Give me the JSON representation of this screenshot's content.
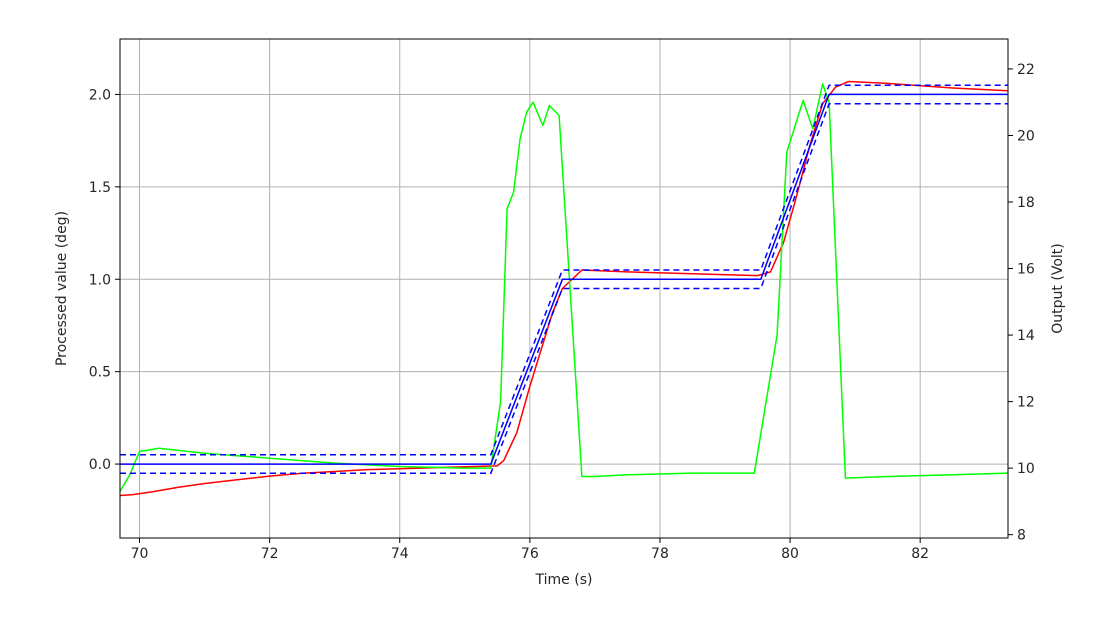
{
  "chart_data": {
    "type": "line",
    "xlabel": "Time (s)",
    "ylabel": "Processed value (deg)",
    "y2label": "Output (Volt)",
    "xlim": [
      69.7,
      83.35
    ],
    "ylim": [
      -0.4,
      2.3
    ],
    "y2lim": [
      7.9,
      22.9
    ],
    "xticks": [
      70,
      72,
      74,
      76,
      78,
      80,
      82
    ],
    "yticks": [
      0.0,
      0.5,
      1.0,
      1.5,
      2.0
    ],
    "y2ticks": [
      8,
      10,
      12,
      14,
      16,
      18,
      20,
      22
    ],
    "grid": true,
    "series": [
      {
        "axis": "left",
        "color": "#ff0000",
        "style": "solid",
        "points": [
          [
            69.7,
            -0.17
          ],
          [
            69.9,
            -0.165
          ],
          [
            70.2,
            -0.15
          ],
          [
            70.6,
            -0.125
          ],
          [
            71.0,
            -0.105
          ],
          [
            71.5,
            -0.085
          ],
          [
            72.0,
            -0.065
          ],
          [
            72.5,
            -0.05
          ],
          [
            73.0,
            -0.04
          ],
          [
            73.5,
            -0.03
          ],
          [
            74.0,
            -0.025
          ],
          [
            74.5,
            -0.02
          ],
          [
            75.0,
            -0.015
          ],
          [
            75.5,
            -0.01
          ],
          [
            75.6,
            0.02
          ],
          [
            75.8,
            0.17
          ],
          [
            76.0,
            0.42
          ],
          [
            76.2,
            0.65
          ],
          [
            76.35,
            0.82
          ],
          [
            76.5,
            0.95
          ],
          [
            76.8,
            1.05
          ],
          [
            77.5,
            1.04
          ],
          [
            78.5,
            1.03
          ],
          [
            79.5,
            1.02
          ],
          [
            79.7,
            1.04
          ],
          [
            79.9,
            1.2
          ],
          [
            80.1,
            1.45
          ],
          [
            80.3,
            1.72
          ],
          [
            80.5,
            1.95
          ],
          [
            80.7,
            2.04
          ],
          [
            80.9,
            2.07
          ],
          [
            81.5,
            2.06
          ],
          [
            82.5,
            2.035
          ],
          [
            83.35,
            2.02
          ]
        ]
      },
      {
        "axis": "right",
        "color": "#00ff00",
        "style": "solid",
        "points": [
          [
            69.7,
            9.3
          ],
          [
            69.85,
            9.8
          ],
          [
            70.0,
            10.5
          ],
          [
            70.3,
            10.6
          ],
          [
            71.0,
            10.45
          ],
          [
            72.0,
            10.3
          ],
          [
            73.0,
            10.15
          ],
          [
            74.0,
            10.05
          ],
          [
            75.0,
            10.0
          ],
          [
            75.4,
            10.0
          ],
          [
            75.55,
            12.0
          ],
          [
            75.65,
            17.8
          ],
          [
            75.75,
            18.3
          ],
          [
            75.85,
            19.9
          ],
          [
            75.95,
            20.7
          ],
          [
            76.05,
            21.0
          ],
          [
            76.2,
            20.3
          ],
          [
            76.3,
            20.9
          ],
          [
            76.45,
            20.6
          ],
          [
            76.8,
            9.75
          ],
          [
            77.0,
            9.75
          ],
          [
            77.5,
            9.8
          ],
          [
            78.5,
            9.85
          ],
          [
            79.45,
            9.85
          ],
          [
            79.8,
            14.0
          ],
          [
            79.95,
            19.5
          ],
          [
            80.2,
            21.05
          ],
          [
            80.35,
            20.2
          ],
          [
            80.5,
            21.55
          ],
          [
            80.6,
            21.0
          ],
          [
            80.85,
            9.7
          ],
          [
            81.5,
            9.75
          ],
          [
            82.5,
            9.8
          ],
          [
            83.35,
            9.85
          ]
        ]
      },
      {
        "axis": "left",
        "color": "#0000ff",
        "style": "solid",
        "points": [
          [
            69.7,
            0.0
          ],
          [
            75.4,
            0.0
          ],
          [
            76.5,
            1.0
          ],
          [
            79.55,
            1.0
          ],
          [
            80.6,
            2.0
          ],
          [
            83.35,
            2.0
          ]
        ]
      },
      {
        "axis": "left",
        "color": "#0000ff",
        "style": "dashed",
        "points": [
          [
            69.7,
            0.05
          ],
          [
            75.4,
            0.05
          ],
          [
            76.5,
            1.05
          ],
          [
            79.55,
            1.05
          ],
          [
            80.6,
            2.05
          ],
          [
            83.35,
            2.05
          ]
        ]
      },
      {
        "axis": "left",
        "color": "#0000ff",
        "style": "dashed",
        "points": [
          [
            69.7,
            -0.05
          ],
          [
            75.4,
            -0.05
          ],
          [
            76.5,
            0.95
          ],
          [
            79.55,
            0.95
          ],
          [
            80.6,
            1.95
          ],
          [
            83.35,
            1.95
          ]
        ]
      }
    ]
  }
}
